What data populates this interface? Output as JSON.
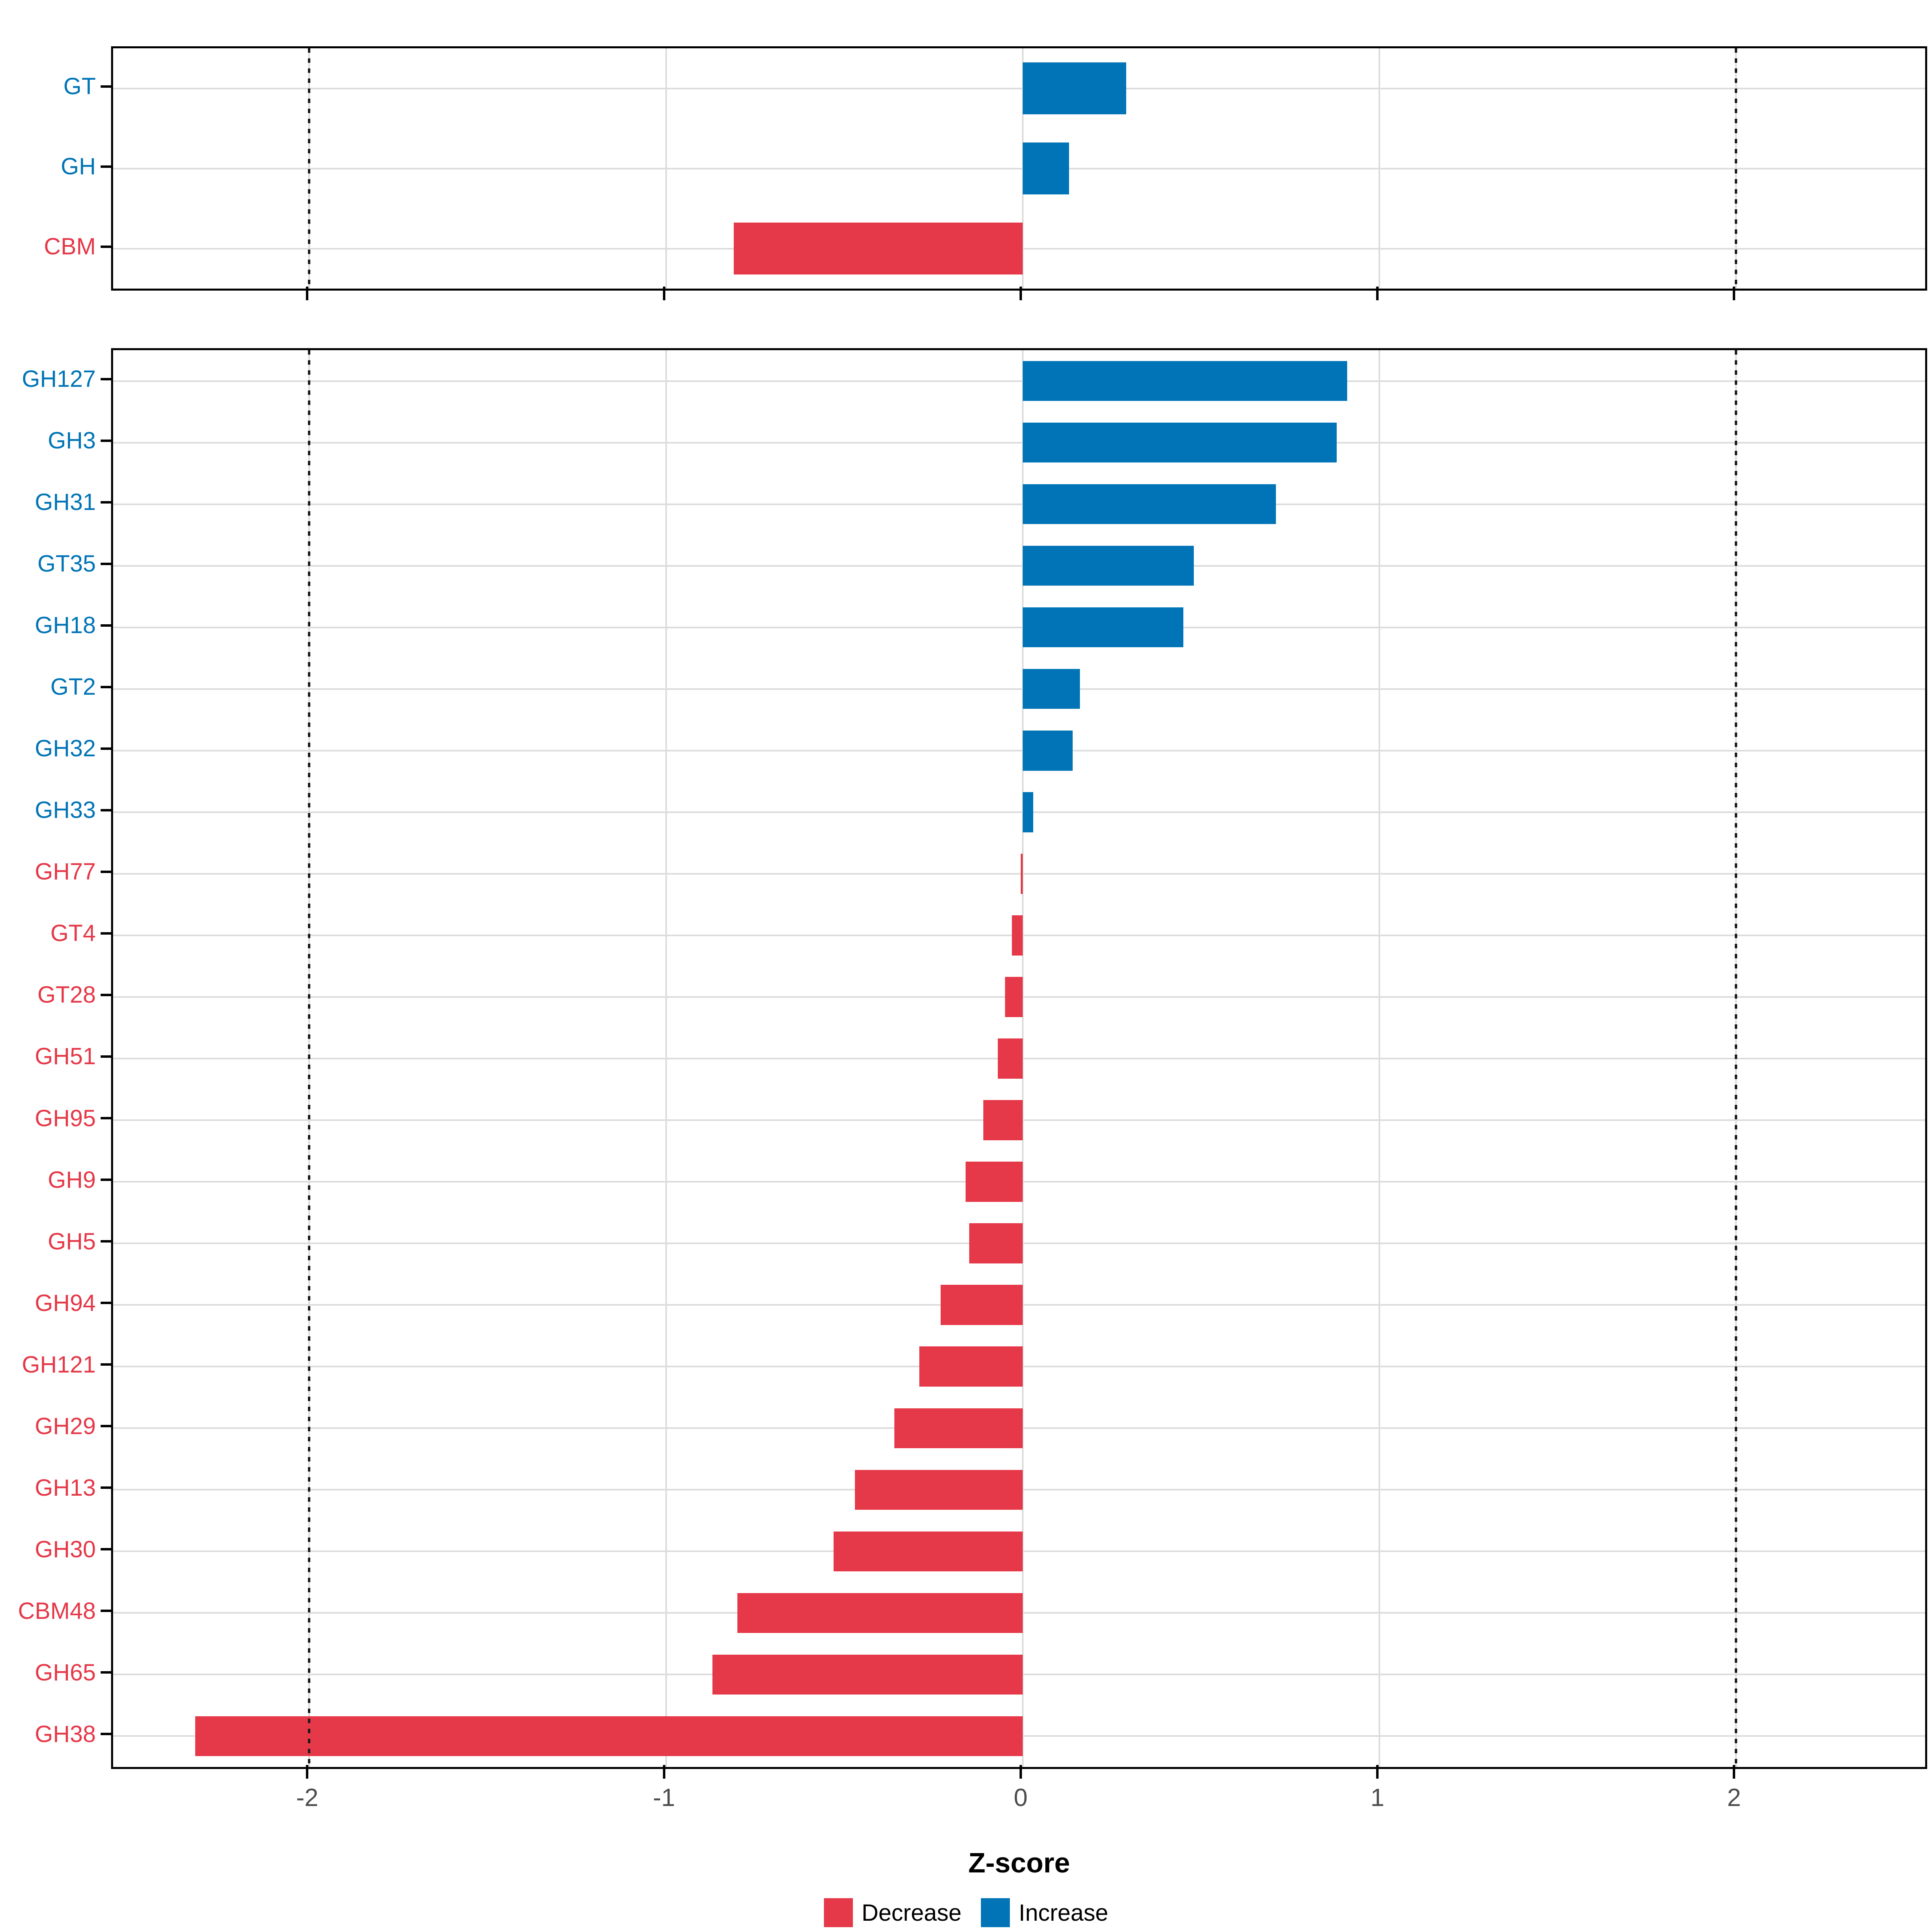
{
  "figure": {
    "background": "#FFFFFF"
  },
  "colors": {
    "increase": "#0074B6",
    "decrease": "#E53848",
    "grid": "#DCDCDC",
    "panel_border": "#000000",
    "tick": "#000000",
    "tick_label": "#4D4D4D",
    "reference_line": "#1A1A1A"
  },
  "x_axis": {
    "label": "Z-score",
    "min": -2.55,
    "max": 2.53,
    "ticks": [
      -2,
      -1,
      0,
      1,
      2
    ],
    "tick_labels": [
      "-2",
      "-1",
      "0",
      "1",
      "2"
    ],
    "reference_lines": [
      -2,
      2
    ],
    "grid": true
  },
  "legend": [
    {
      "label": "Decrease",
      "color_key": "decrease"
    },
    {
      "label": "Increase",
      "color_key": "increase"
    }
  ],
  "chart_data": [
    {
      "type": "bar",
      "orientation": "horizontal",
      "panel": "top",
      "categories": [
        "GT",
        "GH",
        "CBM"
      ],
      "values": [
        0.29,
        0.13,
        -0.81
      ],
      "directions": [
        "increase",
        "increase",
        "decrease"
      ]
    },
    {
      "type": "bar",
      "orientation": "horizontal",
      "panel": "bottom",
      "categories": [
        "GH127",
        "GH3",
        "GH31",
        "GT35",
        "GH18",
        "GT2",
        "GH32",
        "GH33",
        "GH77",
        "GT4",
        "GT28",
        "GH51",
        "GH95",
        "GH9",
        "GH5",
        "GH94",
        "GH121",
        "GH29",
        "GH13",
        "GH30",
        "CBM48",
        "GH65",
        "GH38"
      ],
      "values": [
        0.91,
        0.88,
        0.71,
        0.48,
        0.45,
        0.16,
        0.14,
        0.03,
        -0.005,
        -0.03,
        -0.05,
        -0.07,
        -0.11,
        -0.16,
        -0.15,
        -0.23,
        -0.29,
        -0.36,
        -0.47,
        -0.53,
        -0.8,
        -0.87,
        -2.32
      ],
      "directions": [
        "increase",
        "increase",
        "increase",
        "increase",
        "increase",
        "increase",
        "increase",
        "increase",
        "decrease",
        "decrease",
        "decrease",
        "decrease",
        "decrease",
        "decrease",
        "decrease",
        "decrease",
        "decrease",
        "decrease",
        "decrease",
        "decrease",
        "decrease",
        "decrease",
        "decrease"
      ]
    }
  ]
}
